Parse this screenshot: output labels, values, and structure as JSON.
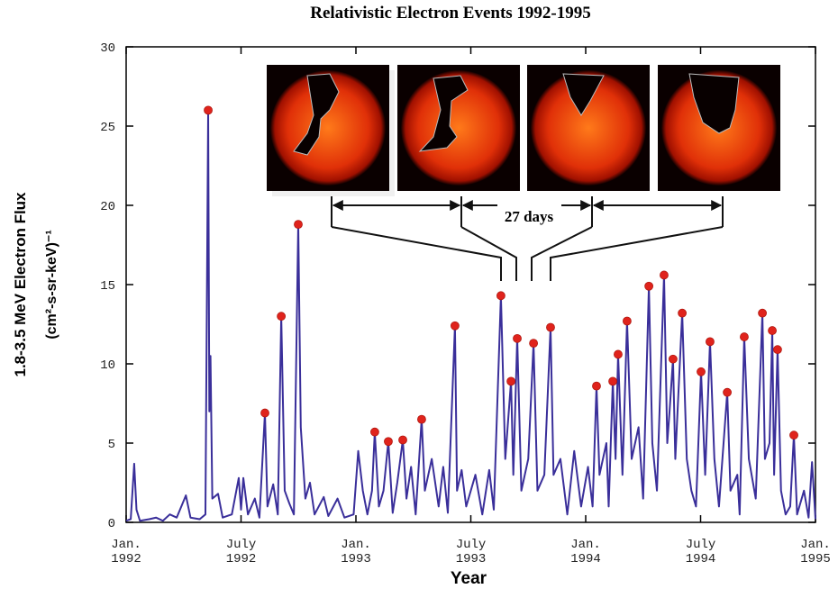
{
  "chart_data": {
    "type": "line",
    "title": "Relativistic Electron Events 1992-1995",
    "x_label": "Year",
    "y_label": "1.8-3.5 MeV Electron Flux",
    "y_label_units": "(cm²-s-sr-keV)⁻¹",
    "annotations": [
      "27 days"
    ],
    "xlim": [
      1992,
      1995
    ],
    "xticks": [
      {
        "value": 1992,
        "label": "Jan. 1992"
      },
      {
        "value": 1992.5,
        "label": "July 1992"
      },
      {
        "value": 1993,
        "label": "Jan. 1993"
      },
      {
        "value": 1993.5,
        "label": "July 1993"
      },
      {
        "value": 1994,
        "label": "Jan. 1994"
      },
      {
        "value": 1994.5,
        "label": "July 1994"
      },
      {
        "value": 1995,
        "label": "Jan. 1995"
      }
    ],
    "ylim": [
      0,
      30
    ],
    "yticks": [
      0,
      5,
      10,
      15,
      20,
      25,
      30
    ],
    "series": [
      {
        "type": "line",
        "color": "#3a2f9a",
        "x": [
          1992.0,
          1992.02,
          1992.035,
          1992.045,
          1992.06,
          1992.1,
          1992.13,
          1992.16,
          1992.19,
          1992.22,
          1992.26,
          1992.28,
          1992.32,
          1992.345,
          1992.357,
          1992.362,
          1992.367,
          1992.375,
          1992.4,
          1992.42,
          1992.46,
          1992.49,
          1992.5,
          1992.51,
          1992.53,
          1992.56,
          1992.58,
          1992.604,
          1992.615,
          1992.64,
          1992.66,
          1992.675,
          1992.69,
          1992.71,
          1992.73,
          1992.749,
          1992.76,
          1992.78,
          1992.8,
          1992.82,
          1992.86,
          1992.88,
          1992.92,
          1992.95,
          1992.99,
          1993.01,
          1993.03,
          1993.05,
          1993.07,
          1993.082,
          1993.1,
          1993.12,
          1993.141,
          1993.16,
          1993.18,
          1993.204,
          1993.22,
          1993.24,
          1993.26,
          1993.286,
          1993.3,
          1993.33,
          1993.36,
          1993.38,
          1993.4,
          1993.431,
          1993.44,
          1993.46,
          1993.48,
          1993.52,
          1993.55,
          1993.58,
          1993.6,
          1993.631,
          1993.65,
          1993.675,
          1993.685,
          1993.702,
          1993.72,
          1993.75,
          1993.773,
          1993.79,
          1993.82,
          1993.847,
          1993.86,
          1993.89,
          1993.92,
          1993.95,
          1993.98,
          1994.01,
          1994.03,
          1994.047,
          1994.06,
          1994.09,
          1994.1,
          1994.118,
          1994.13,
          1994.141,
          1994.16,
          1994.18,
          1994.2,
          1994.23,
          1994.25,
          1994.275,
          1994.29,
          1994.31,
          1994.341,
          1994.355,
          1994.365,
          1994.38,
          1994.39,
          1994.42,
          1994.44,
          1994.46,
          1994.48,
          1994.502,
          1994.52,
          1994.541,
          1994.56,
          1994.58,
          1994.616,
          1994.63,
          1994.66,
          1994.67,
          1994.69,
          1994.71,
          1994.74,
          1994.769,
          1994.78,
          1994.8,
          1994.812,
          1994.82,
          1994.835,
          1994.85,
          1994.87,
          1994.89,
          1994.906,
          1994.92,
          1994.95,
          1994.97,
          1994.985,
          1995.0
        ],
        "values": [
          0.1,
          0.2,
          3.7,
          0.8,
          0.1,
          0.2,
          0.3,
          0.1,
          0.5,
          0.3,
          1.7,
          0.3,
          0.2,
          0.5,
          26.0,
          7,
          10.5,
          1.5,
          1.8,
          0.3,
          0.5,
          2.8,
          0.8,
          2.8,
          0.5,
          1.5,
          0.3,
          6.9,
          1,
          2.4,
          0.5,
          13.0,
          2,
          1.2,
          0.5,
          18.8,
          6,
          1.5,
          2.5,
          0.5,
          1.6,
          0.4,
          1.5,
          0.3,
          0.5,
          4.5,
          2,
          0.5,
          2,
          5.7,
          1,
          2,
          5.1,
          0.6,
          2.5,
          5.2,
          1.5,
          3.5,
          0.5,
          6.5,
          2,
          4,
          1,
          3.5,
          0.6,
          12.4,
          2,
          3.3,
          1,
          3,
          0.5,
          3.3,
          0.8,
          14.3,
          4,
          8.9,
          3,
          11.6,
          2,
          4,
          11.3,
          2,
          3,
          12.3,
          3,
          4,
          0.5,
          4.5,
          1,
          3.5,
          1,
          8.6,
          3,
          5,
          1,
          8.9,
          4,
          10.6,
          3,
          12.7,
          4,
          6,
          1.5,
          14.9,
          5,
          2,
          15.6,
          5,
          7,
          10.3,
          4,
          13.2,
          4,
          2,
          1,
          9.5,
          3,
          11.4,
          4,
          1,
          8.2,
          2,
          3,
          0.5,
          11.7,
          4,
          1.5,
          13.2,
          4,
          5,
          12.1,
          3,
          10.9,
          2,
          0.5,
          1,
          5.5,
          0.5,
          2,
          0.3,
          3.8,
          0.2
        ]
      },
      {
        "type": "scatter",
        "color": "#e0231c",
        "x": [
          1992.357,
          1992.604,
          1992.675,
          1992.749,
          1993.082,
          1993.141,
          1993.204,
          1993.286,
          1993.431,
          1993.631,
          1993.675,
          1993.702,
          1993.773,
          1993.847,
          1994.047,
          1994.118,
          1994.141,
          1994.18,
          1994.275,
          1994.341,
          1994.38,
          1994.42,
          1994.502,
          1994.541,
          1994.616,
          1994.69,
          1994.769,
          1994.812,
          1994.835,
          1994.906
        ],
        "values": [
          26.0,
          6.9,
          13.0,
          18.8,
          5.7,
          5.1,
          5.2,
          6.5,
          12.4,
          14.3,
          8.9,
          11.6,
          11.3,
          12.3,
          8.6,
          8.9,
          10.6,
          12.7,
          14.9,
          15.6,
          10.3,
          13.2,
          9.5,
          11.4,
          8.2,
          11.7,
          13.2,
          12.1,
          10.9,
          5.5
        ]
      }
    ]
  }
}
